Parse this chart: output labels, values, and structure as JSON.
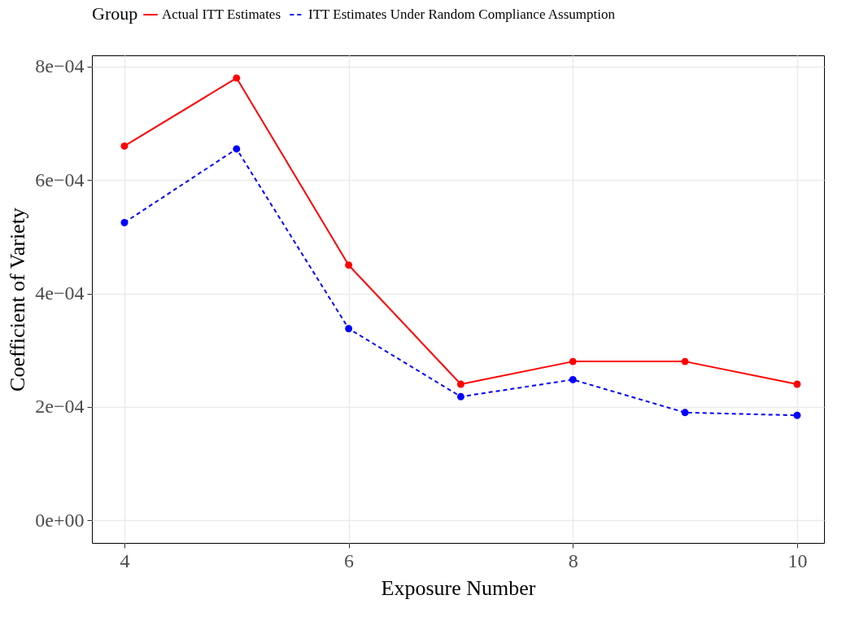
{
  "chart_data": {
    "type": "line",
    "xlabel": "Exposure Number",
    "ylabel": "Coefficient of Variety",
    "legend_title": "Group",
    "x": [
      4,
      5,
      6,
      7,
      8,
      9,
      10
    ],
    "series": [
      {
        "name": "Actual ITT Estimates",
        "color": "#ff0000",
        "line_style": "solid",
        "values": [
          0.00066,
          0.00078,
          0.00045,
          0.00024,
          0.00028,
          0.00028,
          0.00024
        ]
      },
      {
        "name": "ITT Estimates Under Random Compliance Assumption",
        "color": "#0000ff",
        "line_style": "dashed",
        "values": [
          0.000525,
          0.000655,
          0.000338,
          0.000218,
          0.000248,
          0.00019,
          0.000185
        ]
      }
    ],
    "xlim": [
      3.71,
      10.24
    ],
    "xticks": [
      4,
      6,
      8,
      10
    ],
    "ylim": [
      -4e-05,
      0.00082
    ],
    "yticks": [
      {
        "value": 0,
        "label": "0e+00"
      },
      {
        "value": 0.0002,
        "label": "2e−04"
      },
      {
        "value": 0.0004,
        "label": "4e−04"
      },
      {
        "value": 0.0006,
        "label": "6e−04"
      },
      {
        "value": 0.0008,
        "label": "8e−04"
      }
    ],
    "grid": true,
    "legend": "top",
    "marker": "circle"
  }
}
